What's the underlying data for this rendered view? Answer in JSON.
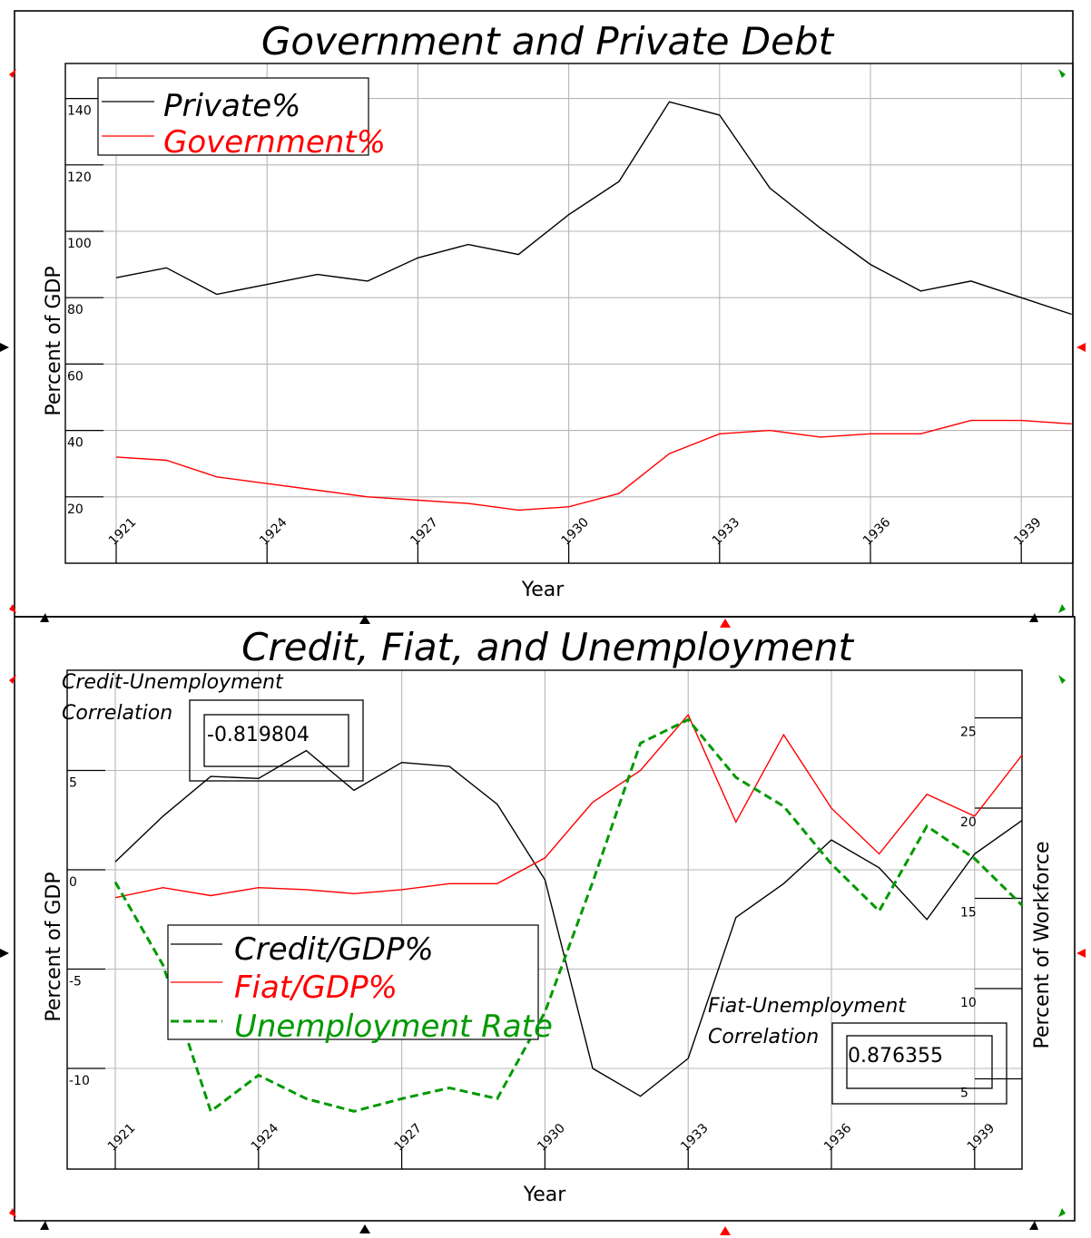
{
  "chart_data": [
    {
      "type": "line",
      "title": "Government and Private Debt",
      "xlabel": "Year",
      "ylabel": "Percent of GDP",
      "x": [
        1921,
        1922,
        1923,
        1924,
        1925,
        1926,
        1927,
        1928,
        1929,
        1930,
        1931,
        1932,
        1933,
        1934,
        1935,
        1936,
        1937,
        1938,
        1939,
        1940
      ],
      "xticks": [
        "1921",
        "1924",
        "1927",
        "1930",
        "1933",
        "1936",
        "1939"
      ],
      "yticks": [
        "20",
        "40",
        "60",
        "80",
        "100",
        "120",
        "140"
      ],
      "ylim": [
        0,
        150
      ],
      "grid": true,
      "legend": "top-left",
      "series": [
        {
          "name": "Private%",
          "color": "#000000",
          "dash": false,
          "values": [
            86,
            89,
            81,
            84,
            87,
            85,
            92,
            96,
            93,
            105,
            115,
            139,
            135,
            113,
            101,
            90,
            82,
            85,
            80,
            75
          ]
        },
        {
          "name": "Government%",
          "color": "#ff0000",
          "dash": false,
          "values": [
            32,
            31,
            26,
            24,
            22,
            20,
            19,
            18,
            16,
            17,
            21,
            33,
            39,
            40,
            38,
            39,
            39,
            43,
            43,
            42
          ]
        }
      ]
    },
    {
      "type": "line",
      "title": "Credit, Fiat, and Unemployment",
      "xlabel": "Year",
      "ylabel": "Percent of GDP",
      "ylabel_right": "Percent of Workforce",
      "x": [
        1921,
        1922,
        1923,
        1924,
        1925,
        1926,
        1927,
        1928,
        1929,
        1930,
        1931,
        1932,
        1933,
        1934,
        1935,
        1936,
        1937,
        1938,
        1939,
        1940
      ],
      "xticks": [
        "1921",
        "1924",
        "1927",
        "1930",
        "1933",
        "1936",
        "1939"
      ],
      "yticks": [
        "-10",
        "-5",
        "0",
        "5"
      ],
      "yticks_right": [
        "5",
        "10",
        "15",
        "20",
        "25"
      ],
      "ylim": [
        -15,
        10
      ],
      "ylim_right": [
        0,
        27.5
      ],
      "grid": true,
      "legend": "center-left",
      "series": [
        {
          "name": "Credit/GDP%",
          "color": "#000000",
          "dash": false,
          "axis": "left",
          "values": [
            0.4,
            2.7,
            4.7,
            4.6,
            6.0,
            4.0,
            5.4,
            5.2,
            3.3,
            -0.5,
            -10.0,
            -11.4,
            -9.5,
            -2.4,
            -0.7,
            1.5,
            0.1,
            -2.5,
            0.8,
            2.5
          ]
        },
        {
          "name": "Fiat/GDP%",
          "color": "#ff0000",
          "dash": false,
          "axis": "left",
          "values": [
            -1.4,
            -0.9,
            -1.3,
            -0.9,
            -1.0,
            -1.2,
            -1.0,
            -0.7,
            -0.7,
            0.6,
            3.4,
            5.0,
            7.8,
            2.4,
            6.8,
            3.1,
            0.8,
            3.8,
            2.7,
            5.8
          ]
        },
        {
          "name": "Unemployment Rate",
          "color": "#009900",
          "dash": true,
          "axis": "right",
          "values": [
            15.9,
            11.3,
            3.2,
            5.2,
            3.9,
            3.2,
            3.9,
            4.5,
            3.9,
            8.7,
            15.9,
            23.6,
            24.9,
            21.7,
            20.1,
            16.9,
            14.3,
            19.0,
            17.2,
            14.6
          ]
        }
      ],
      "annotations": [
        {
          "label": "Credit-Unemployment",
          "label2": "Correlation",
          "value": "-0.819804"
        },
        {
          "label": "Fiat-Unemployment",
          "label2": "Correlation",
          "value": "0.876355"
        }
      ]
    }
  ]
}
